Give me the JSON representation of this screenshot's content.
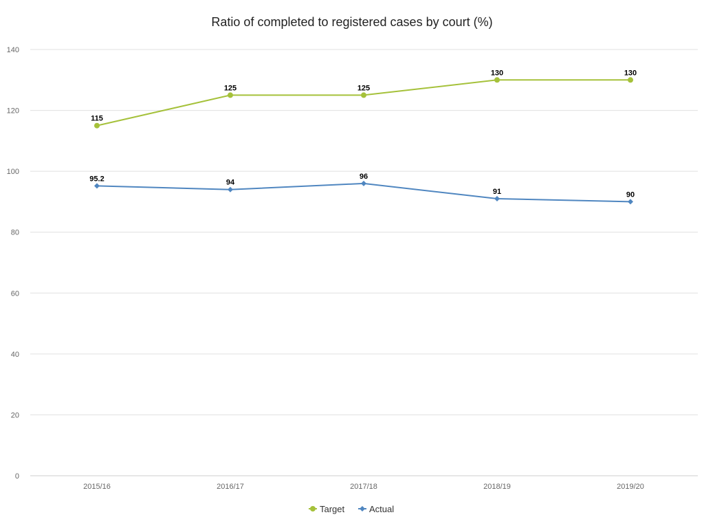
{
  "colors": {
    "target": "#a5c13a",
    "actual": "#4f86c0"
  },
  "chart_data": {
    "type": "line",
    "title": "Ratio of completed to registered cases by court (%)",
    "xlabel": "",
    "ylabel": "",
    "categories": [
      "2015/16",
      "2016/17",
      "2017/18",
      "2018/19",
      "2019/20"
    ],
    "ylim": [
      0,
      140
    ],
    "yticks": [
      0,
      20,
      40,
      60,
      80,
      100,
      120,
      140
    ],
    "grid": true,
    "legend_position": "bottom-center",
    "series": [
      {
        "name": "Target",
        "marker": "circle",
        "values": [
          115,
          125,
          125,
          130,
          130
        ],
        "labels": [
          "115",
          "125",
          "125",
          "130",
          "130"
        ]
      },
      {
        "name": "Actual",
        "marker": "diamond",
        "values": [
          95.2,
          94,
          96,
          91,
          90
        ],
        "labels": [
          "95.2",
          "94",
          "96",
          "91",
          "90"
        ]
      }
    ]
  }
}
